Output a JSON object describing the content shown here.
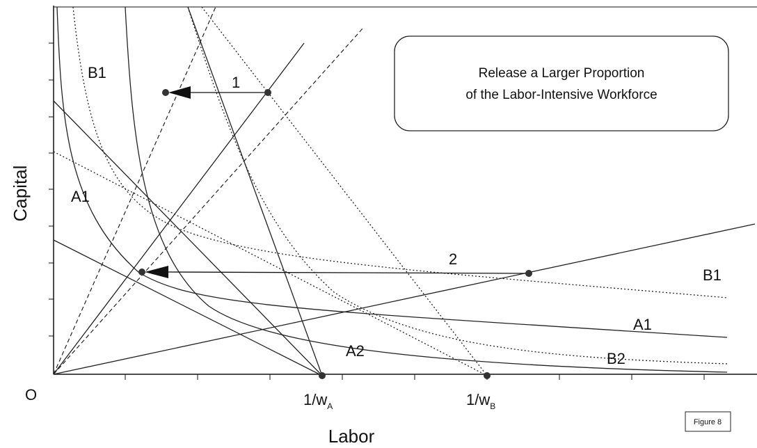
{
  "axes": {
    "y_label": "Capital",
    "x_label": "Labor",
    "origin": "O"
  },
  "curve_labels": [
    "B1",
    "A1",
    "B1",
    "A1",
    "A2",
    "B2"
  ],
  "arrow_labels": [
    "1",
    "2"
  ],
  "intercepts": [
    {
      "text": "1/w",
      "sub": "A"
    },
    {
      "text": "1/w",
      "sub": "B"
    }
  ],
  "callout": [
    "Release a Larger Proportion",
    "of the Labor-Intensive Workforce"
  ],
  "figure_label": "Figure 8"
}
